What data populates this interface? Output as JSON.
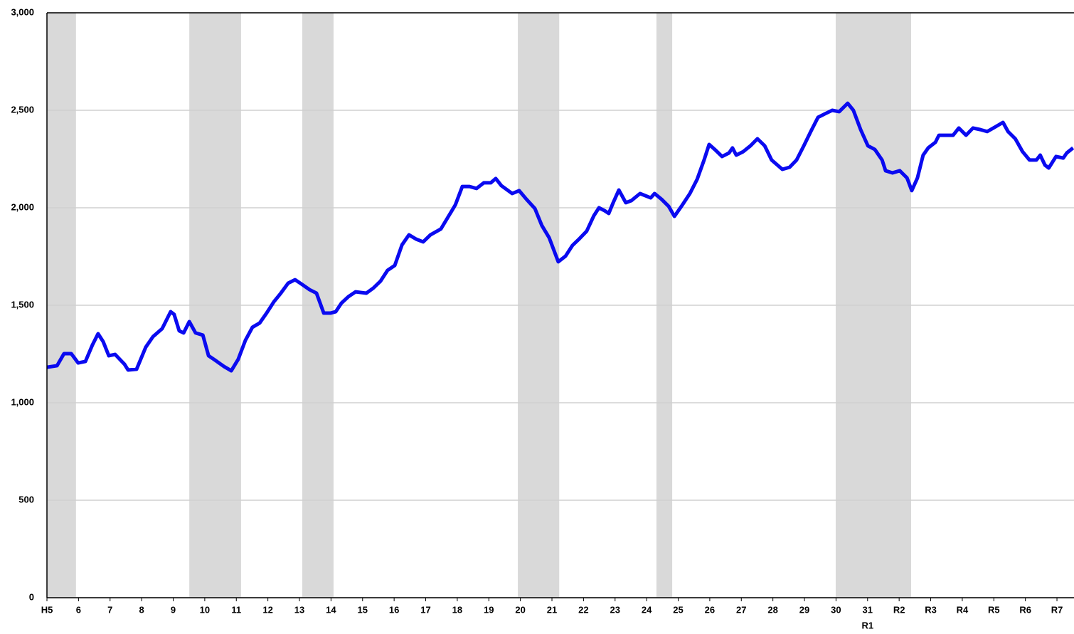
{
  "chart_data": {
    "type": "line",
    "x": [
      0,
      0.32,
      0.54,
      0.77,
      0.99,
      1.22,
      1.44,
      1.62,
      1.78,
      1.96,
      2.16,
      2.46,
      2.57,
      2.84,
      3.13,
      3.36,
      3.65,
      3.92,
      4.03,
      4.19,
      4.33,
      4.51,
      4.71,
      4.94,
      5.12,
      5.32,
      5.61,
      5.84,
      6.06,
      6.29,
      6.51,
      6.74,
      6.96,
      7.19,
      7.41,
      7.64,
      7.86,
      8.09,
      8.32,
      8.54,
      8.77,
      8.99,
      9.15,
      9.33,
      9.55,
      9.78,
      10.12,
      10.34,
      10.57,
      10.79,
      11.02,
      11.25,
      11.47,
      11.7,
      11.92,
      12.15,
      12.48,
      12.71,
      12.94,
      13.16,
      13.39,
      13.61,
      13.84,
      14.06,
      14.22,
      14.4,
      14.74,
      14.96,
      15.19,
      15.46,
      15.68,
      15.91,
      16.2,
      16.43,
      16.65,
      16.88,
      17.1,
      17.33,
      17.49,
      17.67,
      17.8,
      17.94,
      18.12,
      18.34,
      18.52,
      18.79,
      19.13,
      19.25,
      19.47,
      19.7,
      19.88,
      20.1,
      20.37,
      20.6,
      20.82,
      20.98,
      21.16,
      21.39,
      21.61,
      21.72,
      21.84,
      22.06,
      22.29,
      22.51,
      22.74,
      22.96,
      23.3,
      23.53,
      23.75,
      23.98,
      24.2,
      24.43,
      24.65,
      24.88,
      25.1,
      25.37,
      25.55,
      25.78,
      26.01,
      26.23,
      26.46,
      26.57,
      26.79,
      27.02,
      27.25,
      27.4,
      27.58,
      27.76,
      27.92,
      28.15,
      28.26,
      28.48,
      28.71,
      28.89,
      29.12,
      29.34,
      29.57,
      29.79,
      30.06,
      30.29,
      30.45,
      30.68,
      30.91,
      31.13,
      31.35,
      31.47,
      31.62,
      31.74,
      31.97,
      32.2,
      32.31,
      32.51
    ],
    "series": [
      {
        "color": "#0a0af0",
        "values": [
          1182,
          1190,
          1252,
          1252,
          1204,
          1212,
          1296,
          1354,
          1314,
          1241,
          1248,
          1197,
          1168,
          1172,
          1285,
          1339,
          1380,
          1467,
          1453,
          1369,
          1358,
          1416,
          1358,
          1347,
          1241,
          1219,
          1186,
          1164,
          1223,
          1321,
          1387,
          1409,
          1460,
          1518,
          1562,
          1613,
          1631,
          1606,
          1580,
          1562,
          1460,
          1460,
          1467,
          1511,
          1544,
          1569,
          1562,
          1588,
          1624,
          1679,
          1704,
          1810,
          1861,
          1839,
          1825,
          1861,
          1891,
          1953,
          2015,
          2109,
          2109,
          2099,
          2128,
          2128,
          2150,
          2113,
          2073,
          2088,
          2044,
          1996,
          1909,
          1847,
          1723,
          1752,
          1807,
          1843,
          1880,
          1960,
          2000,
          1985,
          1971,
          2026,
          2091,
          2026,
          2037,
          2073,
          2051,
          2073,
          2044,
          2007,
          1956,
          2007,
          2073,
          2146,
          2245,
          2325,
          2299,
          2263,
          2281,
          2307,
          2270,
          2288,
          2318,
          2354,
          2318,
          2245,
          2197,
          2208,
          2245,
          2318,
          2391,
          2464,
          2482,
          2500,
          2493,
          2536,
          2500,
          2401,
          2318,
          2299,
          2245,
          2190,
          2179,
          2190,
          2153,
          2088,
          2153,
          2270,
          2307,
          2336,
          2372,
          2372,
          2372,
          2409,
          2372,
          2409,
          2401,
          2391,
          2416,
          2438,
          2391,
          2354,
          2288,
          2245,
          2245,
          2270,
          2219,
          2204,
          2263,
          2255,
          2281,
          2307
        ]
      }
    ],
    "shaded_periods": [
      [
        0,
        0.92
      ],
      [
        4.51,
        6.15
      ],
      [
        8.09,
        9.08
      ],
      [
        14.92,
        16.23
      ],
      [
        19.31,
        19.81
      ],
      [
        24.99,
        27.38
      ]
    ],
    "shade_color": "#d9d9d9",
    "xlim": [
      0,
      32.54
    ],
    "xticks": [
      {
        "value": 0,
        "label": "H5"
      },
      {
        "value": 1,
        "label": "6"
      },
      {
        "value": 2,
        "label": "7"
      },
      {
        "value": 3,
        "label": "8"
      },
      {
        "value": 4,
        "label": "9"
      },
      {
        "value": 5,
        "label": "10"
      },
      {
        "value": 6,
        "label": "11"
      },
      {
        "value": 7,
        "label": "12"
      },
      {
        "value": 8,
        "label": "13"
      },
      {
        "value": 9,
        "label": "14"
      },
      {
        "value": 10,
        "label": "15"
      },
      {
        "value": 11,
        "label": "16"
      },
      {
        "value": 12,
        "label": "17"
      },
      {
        "value": 13,
        "label": "18"
      },
      {
        "value": 14,
        "label": "19"
      },
      {
        "value": 15,
        "label": "20"
      },
      {
        "value": 16,
        "label": "21"
      },
      {
        "value": 17,
        "label": "22"
      },
      {
        "value": 18,
        "label": "23"
      },
      {
        "value": 19,
        "label": "24"
      },
      {
        "value": 20,
        "label": "25"
      },
      {
        "value": 21,
        "label": "26"
      },
      {
        "value": 22,
        "label": "27"
      },
      {
        "value": 23,
        "label": "28"
      },
      {
        "value": 24,
        "label": "29"
      },
      {
        "value": 25,
        "label": "30"
      },
      {
        "value": 26,
        "label": "31"
      },
      {
        "value": 27,
        "label": "R2"
      },
      {
        "value": 28,
        "label": "R3"
      },
      {
        "value": 29,
        "label": "R4"
      },
      {
        "value": 30,
        "label": "R5"
      },
      {
        "value": 31,
        "label": "R6"
      },
      {
        "value": 32,
        "label": "R7"
      }
    ],
    "era_label": {
      "value": 26,
      "label": "R1"
    },
    "ylim": [
      0,
      3000
    ],
    "yticks": [
      0,
      500,
      {
        "value": 1000,
        "label": "1,000"
      },
      {
        "value": 1500,
        "label": "1,500"
      },
      {
        "value": 2000,
        "label": "2,000"
      },
      {
        "value": 2500,
        "label": "2,500"
      },
      {
        "value": 3000,
        "label": "3,000"
      }
    ],
    "grid": true
  }
}
